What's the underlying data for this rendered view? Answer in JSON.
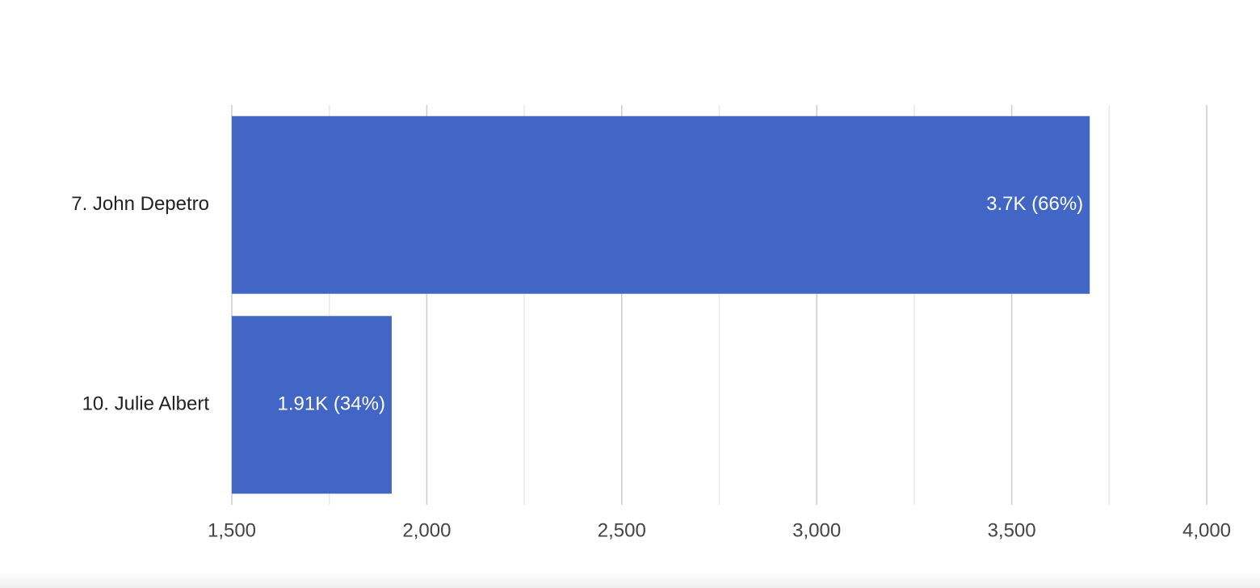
{
  "chart_data": {
    "type": "hbar",
    "categories": [
      "7. John Depetro",
      "10. Julie Albert"
    ],
    "values": [
      3700,
      1910
    ],
    "value_labels": [
      "3.7K (66%)",
      "1.91K (34%)"
    ],
    "color": "#4166c5",
    "xlim": [
      1500,
      4000
    ],
    "xticks": [
      {
        "value": 1500,
        "label": "1,500"
      },
      {
        "value": 2000,
        "label": "2,000"
      },
      {
        "value": 2500,
        "label": "2,500"
      },
      {
        "value": 3000,
        "label": "3,000"
      },
      {
        "value": 3500,
        "label": "3,500"
      },
      {
        "value": 4000,
        "label": "4,000"
      }
    ],
    "minor_xticks": [
      1750,
      2250,
      2750,
      3250,
      3750
    ],
    "grid": true
  }
}
